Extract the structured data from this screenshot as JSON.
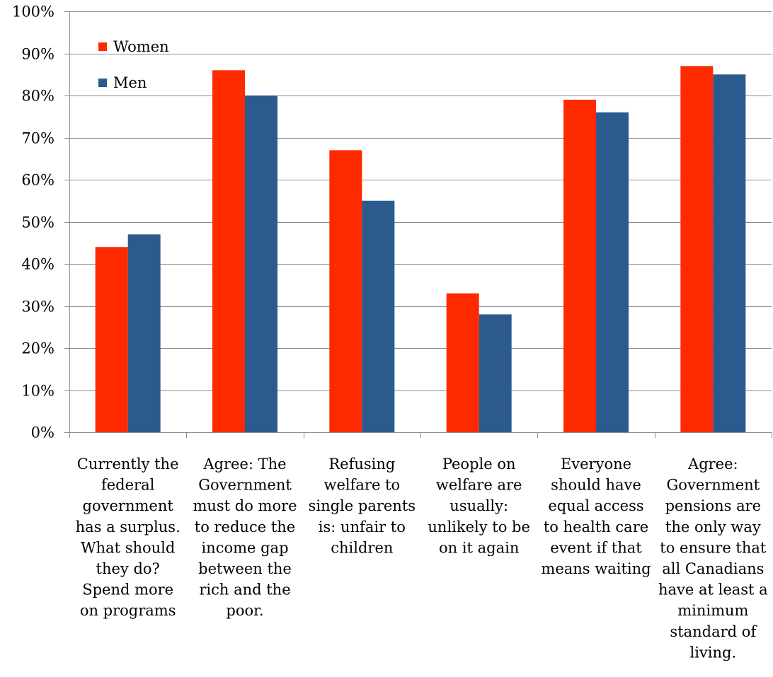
{
  "chart_data": {
    "type": "bar",
    "title": "",
    "xlabel": "",
    "ylabel": "",
    "ylim": [
      0,
      100
    ],
    "yticks": [
      0,
      10,
      20,
      30,
      40,
      50,
      60,
      70,
      80,
      90,
      100
    ],
    "ytick_labels": [
      "0%",
      "10%",
      "20%",
      "30%",
      "40%",
      "50%",
      "60%",
      "70%",
      "80%",
      "90%",
      "100%"
    ],
    "grid": true,
    "legend_position": "top-left",
    "categories": [
      [
        "Currently the",
        "federal",
        "government",
        "has a surplus.",
        "What should",
        "they do?",
        "Spend more",
        "on programs"
      ],
      [
        "Agree: The",
        "Government",
        "must do more",
        "to reduce the",
        "income gap",
        "between the",
        "rich and the",
        "poor."
      ],
      [
        "Refusing",
        "welfare to",
        "single parents",
        "is: unfair to",
        "children"
      ],
      [
        "People on",
        "welfare are",
        "usually:",
        "unlikely to be",
        "on it again"
      ],
      [
        "Everyone",
        "should have",
        "equal access",
        "to health care",
        "event if that",
        "means waiting"
      ],
      [
        "Agree:",
        "Government",
        "pensions are",
        "the only way",
        "to ensure that",
        "all Canadians",
        "have at least a",
        "minimum",
        "standard of",
        "living."
      ]
    ],
    "series": [
      {
        "name": "Women",
        "color": "#ff2a00",
        "values": [
          44,
          86,
          67,
          33,
          79,
          87
        ]
      },
      {
        "name": "Men",
        "color": "#2b5a8f",
        "values": [
          47,
          80,
          55,
          28,
          76,
          85
        ]
      }
    ]
  }
}
